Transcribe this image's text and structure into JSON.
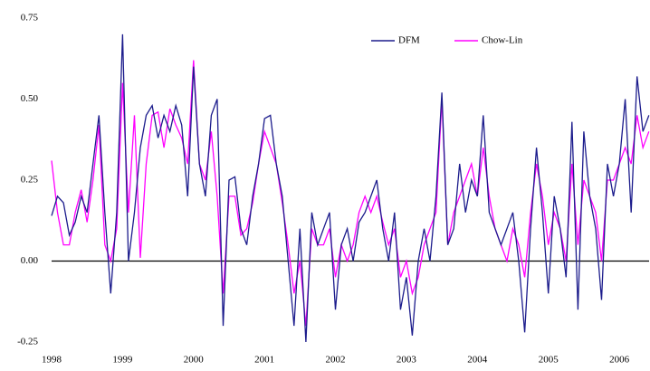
{
  "chart_data": {
    "type": "line",
    "x": [
      1998,
      1998.083,
      1998.167,
      1998.25,
      1998.333,
      1998.417,
      1998.5,
      1998.583,
      1998.667,
      1998.75,
      1998.833,
      1998.917,
      1999,
      1999.083,
      1999.167,
      1999.25,
      1999.333,
      1999.417,
      1999.5,
      1999.583,
      1999.667,
      1999.75,
      1999.833,
      1999.917,
      2000,
      2000.083,
      2000.167,
      2000.25,
      2000.333,
      2000.417,
      2000.5,
      2000.583,
      2000.667,
      2000.75,
      2000.833,
      2000.917,
      2001,
      2001.083,
      2001.167,
      2001.25,
      2001.333,
      2001.417,
      2001.5,
      2001.583,
      2001.667,
      2001.75,
      2001.833,
      2001.917,
      2002,
      2002.083,
      2002.167,
      2002.25,
      2002.333,
      2002.417,
      2002.5,
      2002.583,
      2002.667,
      2002.75,
      2002.833,
      2002.917,
      2003,
      2003.083,
      2003.167,
      2003.25,
      2003.333,
      2003.417,
      2003.5,
      2003.583,
      2003.667,
      2003.75,
      2003.833,
      2003.917,
      2004,
      2004.083,
      2004.167,
      2004.25,
      2004.333,
      2004.417,
      2004.5,
      2004.583,
      2004.667,
      2004.75,
      2004.833,
      2004.917,
      2005,
      2005.083,
      2005.167,
      2005.25,
      2005.333,
      2005.417,
      2005.5,
      2005.583,
      2005.667,
      2005.75,
      2005.833,
      2005.917,
      2006,
      2006.083,
      2006.167,
      2006.25,
      2006.333,
      2006.417
    ],
    "series": [
      {
        "name": "DFM",
        "color": "#1c1c8c",
        "values": [
          0.14,
          0.2,
          0.18,
          0.08,
          0.12,
          0.2,
          0.15,
          0.3,
          0.45,
          0.15,
          -0.1,
          0.15,
          0.7,
          0.0,
          0.15,
          0.35,
          0.45,
          0.48,
          0.38,
          0.45,
          0.4,
          0.48,
          0.42,
          0.2,
          0.6,
          0.3,
          0.2,
          0.45,
          0.5,
          -0.2,
          0.25,
          0.26,
          0.1,
          0.05,
          0.2,
          0.3,
          0.44,
          0.45,
          0.3,
          0.2,
          0.0,
          -0.2,
          0.1,
          -0.25,
          0.15,
          0.05,
          0.1,
          0.15,
          -0.15,
          0.05,
          0.1,
          0.0,
          0.12,
          0.15,
          0.2,
          0.25,
          0.1,
          0.0,
          0.15,
          -0.15,
          -0.05,
          -0.23,
          0.0,
          0.1,
          0.0,
          0.2,
          0.52,
          0.05,
          0.1,
          0.3,
          0.15,
          0.25,
          0.2,
          0.45,
          0.15,
          0.1,
          0.05,
          0.1,
          0.15,
          0.0,
          -0.22,
          0.1,
          0.35,
          0.15,
          -0.1,
          0.2,
          0.1,
          -0.05,
          0.43,
          -0.15,
          0.4,
          0.2,
          0.1,
          -0.12,
          0.3,
          0.2,
          0.3,
          0.5,
          0.15,
          0.57,
          0.4,
          0.45
        ]
      },
      {
        "name": "Chow-Lin",
        "color": "#ff00ff",
        "values": [
          0.31,
          0.15,
          0.05,
          0.05,
          0.15,
          0.22,
          0.12,
          0.25,
          0.42,
          0.05,
          0.0,
          0.1,
          0.55,
          0.15,
          0.45,
          0.01,
          0.3,
          0.45,
          0.46,
          0.35,
          0.47,
          0.42,
          0.38,
          0.3,
          0.62,
          0.3,
          0.25,
          0.4,
          0.2,
          -0.1,
          0.2,
          0.2,
          0.08,
          0.1,
          0.18,
          0.3,
          0.4,
          0.35,
          0.3,
          0.18,
          0.05,
          -0.1,
          0.0,
          -0.2,
          0.1,
          0.05,
          0.05,
          0.1,
          -0.05,
          0.05,
          0.0,
          0.05,
          0.15,
          0.2,
          0.15,
          0.2,
          0.12,
          0.05,
          0.1,
          -0.05,
          0.0,
          -0.1,
          -0.05,
          0.05,
          0.1,
          0.15,
          0.5,
          0.05,
          0.15,
          0.2,
          0.25,
          0.3,
          0.2,
          0.35,
          0.2,
          0.1,
          0.05,
          0.0,
          0.1,
          0.05,
          -0.05,
          0.15,
          0.3,
          0.2,
          0.05,
          0.15,
          0.1,
          0.0,
          0.3,
          0.05,
          0.25,
          0.2,
          0.15,
          0.0,
          0.25,
          0.25,
          0.3,
          0.35,
          0.3,
          0.45,
          0.35,
          0.4
        ]
      }
    ],
    "xlim": [
      1998,
      2006.42
    ],
    "xticks": [
      1998,
      1999,
      2000,
      2001,
      2002,
      2003,
      2004,
      2005,
      2006
    ],
    "ylim": [
      -0.25,
      0.75
    ],
    "yticks": [
      0.75,
      {
        "value": 0.5,
        "label": "0.50"
      },
      0.25,
      {
        "value": 0,
        "label": "0.00"
      },
      -0.25
    ],
    "legend": "top-right"
  }
}
